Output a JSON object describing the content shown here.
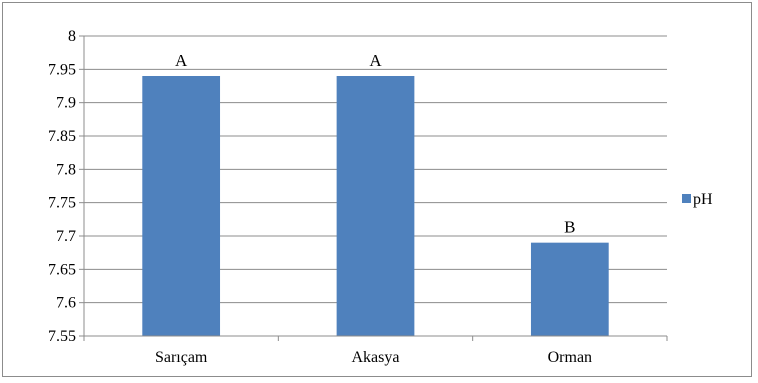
{
  "chart_data": {
    "type": "bar",
    "categories": [
      "Sarıçam",
      "Akasya",
      "Orman"
    ],
    "series": [
      {
        "name": "pH",
        "values": [
          7.94,
          7.94,
          7.69
        ],
        "labels": [
          "A",
          "A",
          "B"
        ],
        "color": "#4f81bd"
      }
    ],
    "ylim": [
      7.55,
      8
    ],
    "yticks": [
      7.55,
      7.6,
      7.65,
      7.7,
      7.75,
      7.8,
      7.85,
      7.9,
      7.95,
      8
    ],
    "ytick_labels": [
      "7.55",
      "7.6",
      "7.65",
      "7.7",
      "7.75",
      "7.8",
      "7.85",
      "7.9",
      "7.95",
      "8"
    ],
    "grid": true,
    "legend": "right",
    "title": "",
    "xlabel": "",
    "ylabel": ""
  }
}
